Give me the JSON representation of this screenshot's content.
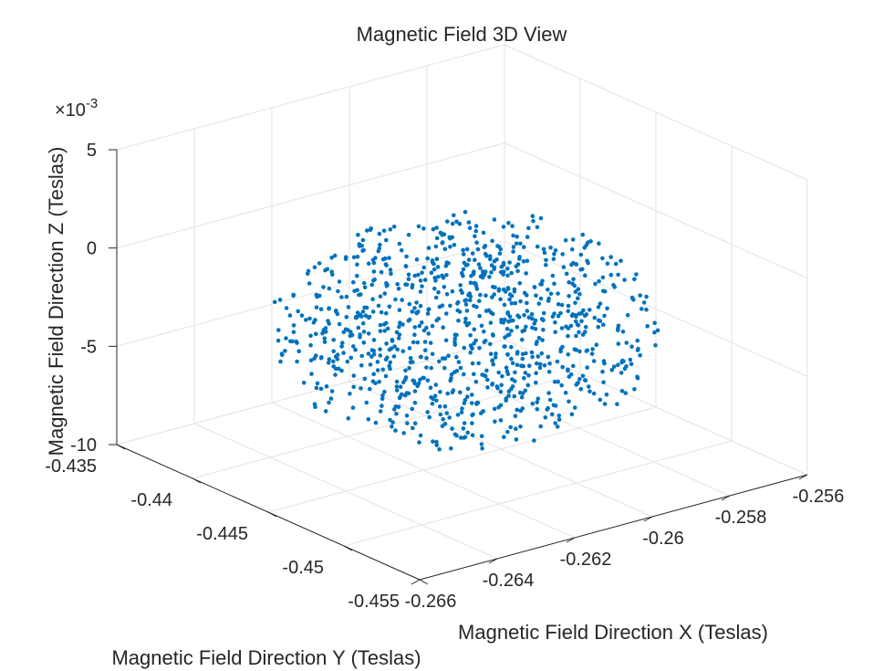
{
  "chart_data": {
    "type": "scatter3d",
    "title": "Magnetic Field 3D View",
    "xlabel": "Magnetic Field Direction X (Teslas)",
    "ylabel": "Magnetic Field Direction Y (Teslas)",
    "zlabel": "Magnetic Field Direction Z (Teslas)",
    "xlim": [
      -0.266,
      -0.256
    ],
    "ylim": [
      -0.455,
      -0.435
    ],
    "zlim": [
      -0.01,
      0.005
    ],
    "x_ticks": [
      "-0.266",
      "-0.264",
      "-0.262",
      "-0.26",
      "-0.258",
      "-0.256"
    ],
    "y_ticks": [
      "-0.435",
      "-0.44",
      "-0.445",
      "-0.45",
      "-0.455"
    ],
    "z_ticks": [
      "-10",
      "-5",
      "0",
      "5"
    ],
    "z_exponent": "×10⁻³",
    "z_exponent_base": "×10",
    "z_exponent_power": "-3",
    "grid": true,
    "marker_color": "#0072BD",
    "marker_size": 2,
    "point_cloud": {
      "x_range": [
        -0.2652,
        -0.2569
      ],
      "y_range": [
        -0.4535,
        -0.4373
      ],
      "z_range": [
        -0.0083,
        0.0018
      ],
      "approx_count": 1000,
      "note_shape": "roughly spherical cloud centered near (-0.2611, -0.4454, -0.0035)"
    }
  }
}
